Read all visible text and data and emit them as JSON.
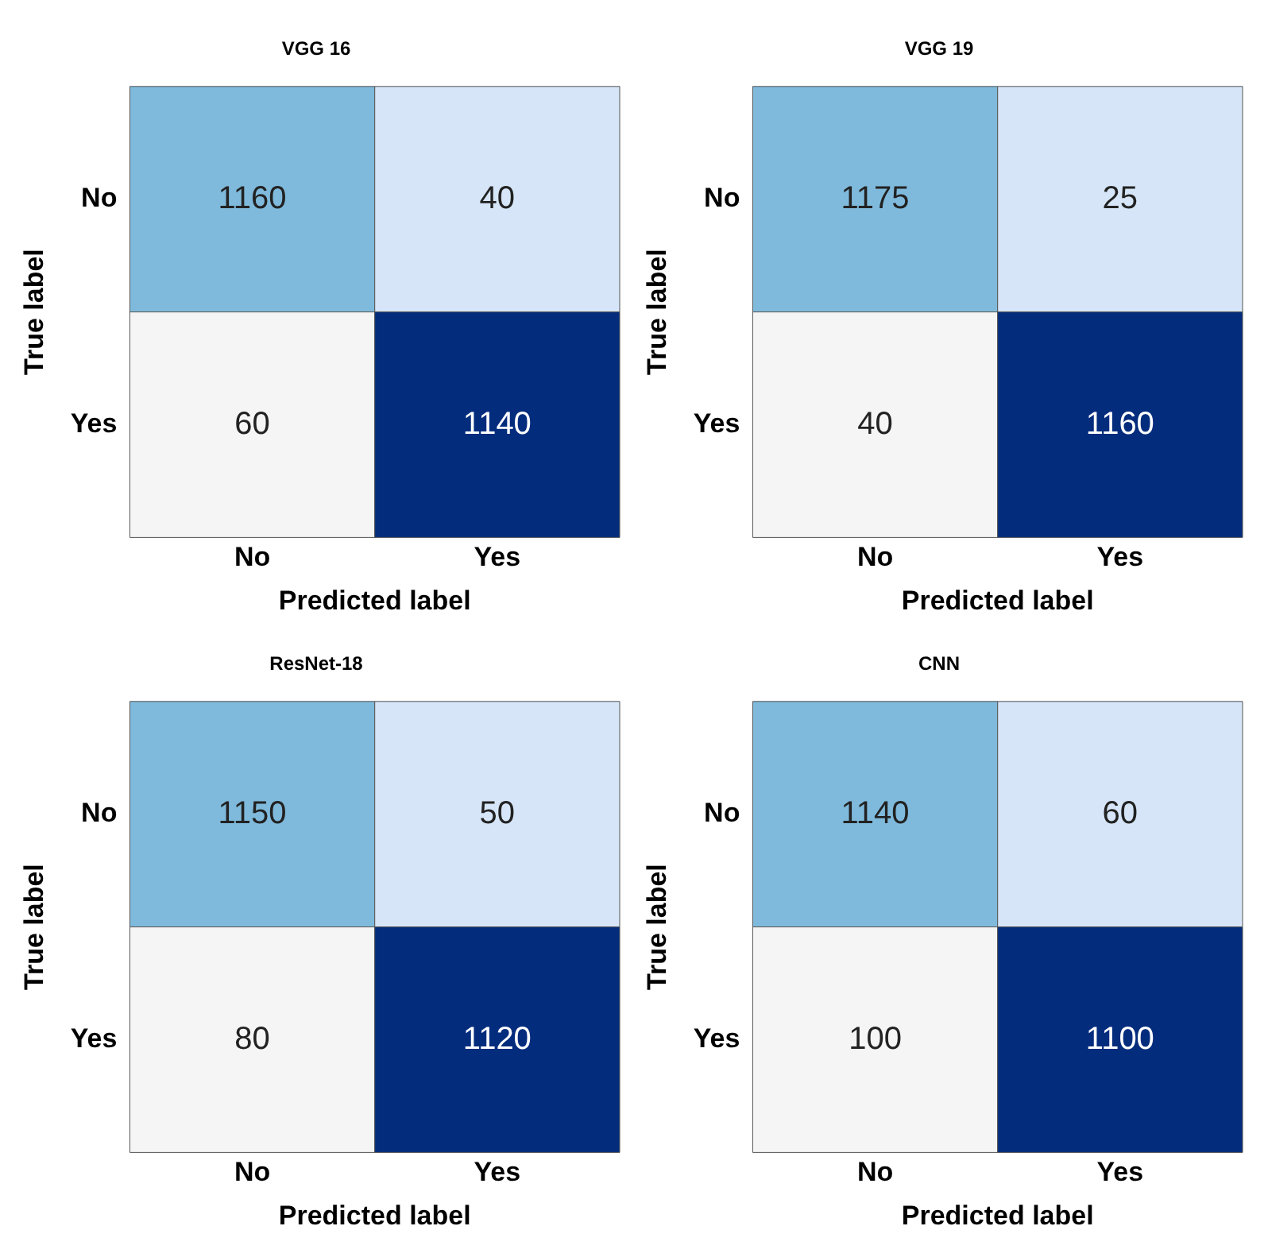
{
  "chart_data": [
    {
      "type": "heatmap",
      "title": "VGG 16",
      "xlabel": "Predicted label",
      "ylabel": "True label",
      "categories": [
        "No",
        "Yes"
      ],
      "y_categories": [
        "No",
        "Yes"
      ],
      "cells": [
        [
          1160,
          40
        ],
        [
          60,
          1140
        ]
      ],
      "colors": [
        [
          "#7fbadc",
          "#d6e6f8"
        ],
        [
          "#f5f5f5",
          "#032c7d"
        ]
      ],
      "data_labels": true
    },
    {
      "type": "heatmap",
      "title": "VGG 19",
      "xlabel": "Predicted label",
      "ylabel": "True label",
      "categories": [
        "No",
        "Yes"
      ],
      "y_categories": [
        "No",
        "Yes"
      ],
      "cells": [
        [
          1175,
          25
        ],
        [
          40,
          1160
        ]
      ],
      "colors": [
        [
          "#7fbadc",
          "#d6e6f8"
        ],
        [
          "#f5f5f5",
          "#032c7d"
        ]
      ],
      "data_labels": true
    },
    {
      "type": "heatmap",
      "title": "ResNet-18",
      "xlabel": "Predicted label",
      "ylabel": "True label",
      "categories": [
        "No",
        "Yes"
      ],
      "y_categories": [
        "No",
        "Yes"
      ],
      "cells": [
        [
          1150,
          50
        ],
        [
          80,
          1120
        ]
      ],
      "colors": [
        [
          "#7fbadc",
          "#d6e6f8"
        ],
        [
          "#f5f5f5",
          "#032c7d"
        ]
      ],
      "data_labels": true
    },
    {
      "type": "heatmap",
      "title": "CNN",
      "xlabel": "Predicted label",
      "ylabel": "True label",
      "categories": [
        "No",
        "Yes"
      ],
      "y_categories": [
        "No",
        "Yes"
      ],
      "cells": [
        [
          1140,
          60
        ],
        [
          100,
          1100
        ]
      ],
      "colors": [
        [
          "#7fbadc",
          "#d6e6f8"
        ],
        [
          "#f5f5f5",
          "#032c7d"
        ]
      ],
      "data_labels": true
    }
  ]
}
